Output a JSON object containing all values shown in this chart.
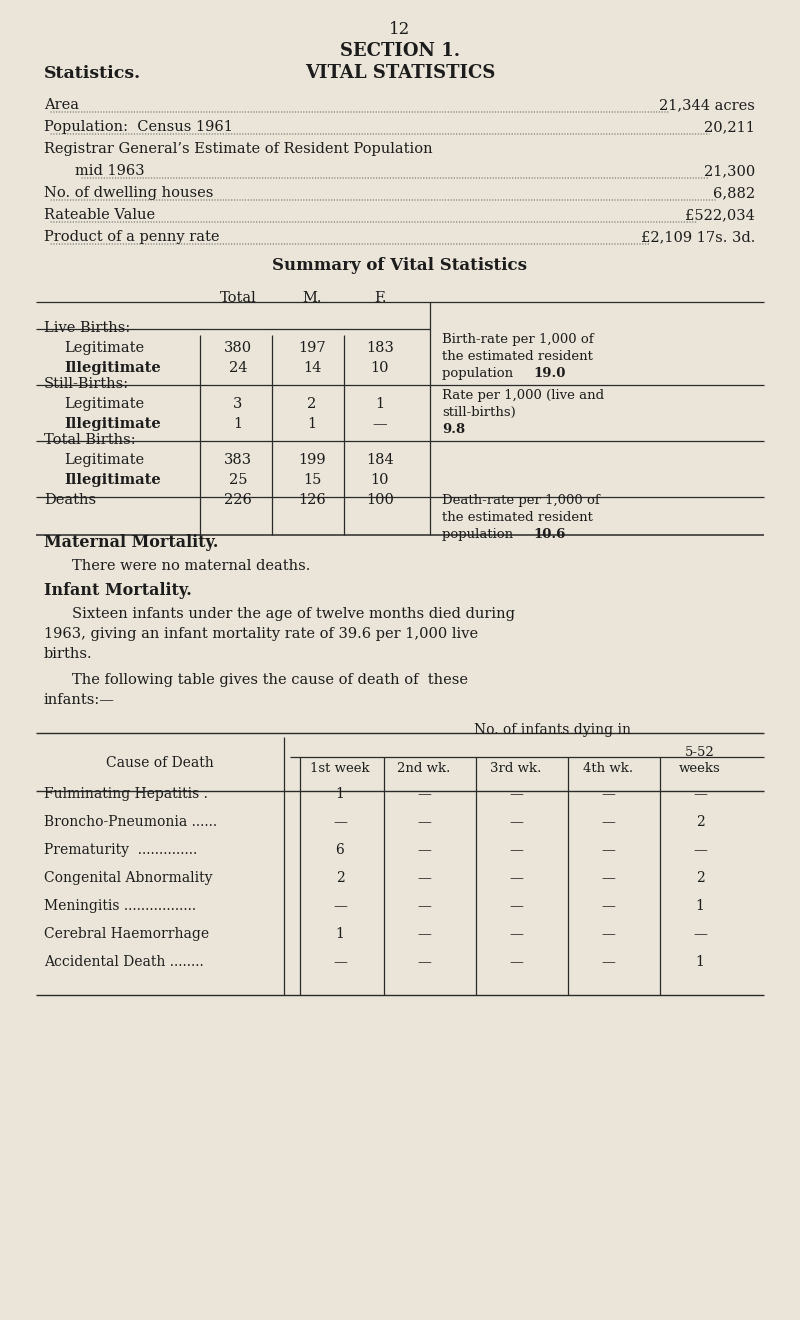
{
  "bg_color": "#eae5d8",
  "text_color": "#1c1c1c",
  "page_number": "12",
  "section_title": "SECTION 1.",
  "left_heading": "Statistics.",
  "right_heading": "VITAL STATISTICS",
  "intro_lines": [
    {
      "label": "Area",
      "dots": true,
      "value": "21,344 acres"
    },
    {
      "label": "Population:  Census 1961",
      "dots": true,
      "value": "20,211"
    },
    {
      "label": "Registrar General’s Estimate of Resident Population",
      "dots": false,
      "value": ""
    },
    {
      "label": "    mid 1963",
      "dots": true,
      "value": "21,300"
    },
    {
      "label": "No. of dwelling houses",
      "dots": true,
      "value": "6,882"
    },
    {
      "label": "Rateable Value",
      "dots": true,
      "value": "£522,034"
    },
    {
      "label": "Product of a penny rate",
      "dots": true,
      "value": "£2,109 17s. 3d."
    }
  ],
  "summary_title": "Summary of Vital Statistics",
  "maternal_heading": "Maternal Mortality.",
  "maternal_text": "There were no maternal deaths.",
  "infant_heading": "Infant Mortality.",
  "infant_para": "Sixteen infants under the age of twelve months died during 1963, giving an infant mortality rate of 39.6 per 1,000 live births.",
  "infant_para2_line1": "The following table gives the cause of death of  these",
  "infant_para2_line2": "infants:—",
  "table2_header_top": "No. of infants dying in",
  "table2_col_header_left": "Cause of Death",
  "table2_col_headers": [
    "1st week",
    "2nd wk.",
    "3rd wk.",
    "4th wk.",
    "5-52",
    "weeks"
  ],
  "table2_rows": [
    {
      "cause": "Fulminating Hepatitis .",
      "w1": "1",
      "w2": "—",
      "w3": "—",
      "w4": "—",
      "w5": "—"
    },
    {
      "cause": "Broncho-Pneumonia ......",
      "w1": "—",
      "w2": "—",
      "w3": "—",
      "w4": "—",
      "w5": "2"
    },
    {
      "cause": "Prematurity  ..............",
      "w1": "6",
      "w2": "—",
      "w3": "—",
      "w4": "—",
      "w5": "—"
    },
    {
      "cause": "Congenital Abnormality",
      "w1": "2",
      "w2": "—",
      "w3": "—",
      "w4": "—",
      "w5": "2"
    },
    {
      "cause": "Meningitis .................",
      "w1": "—",
      "w2": "—",
      "w3": "—",
      "w4": "—",
      "w5": "1"
    },
    {
      "cause": "Cerebral Haemorrhage",
      "w1": "1",
      "w2": "—",
      "w3": "—",
      "w4": "—",
      "w5": "—"
    },
    {
      "cause": "Accidental Death ........",
      "w1": "—",
      "w2": "—",
      "w3": "—",
      "w4": "—",
      "w5": "1"
    }
  ]
}
